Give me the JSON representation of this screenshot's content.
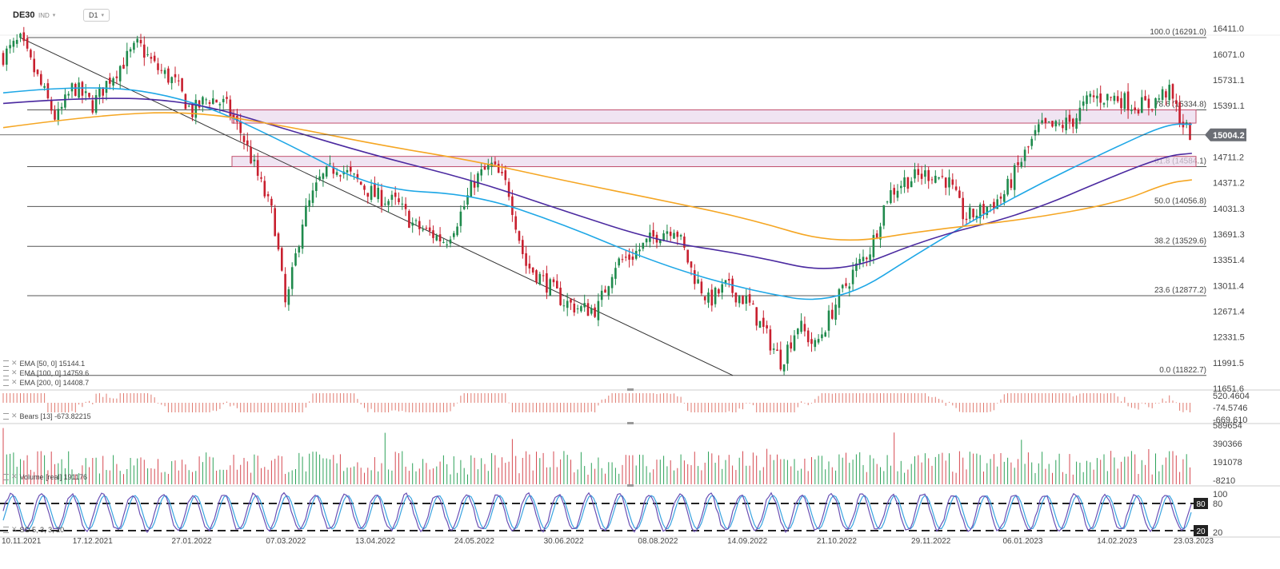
{
  "header": {
    "symbol": "DE30",
    "symbol_type": "IND",
    "timeframe": "D1",
    "caret": "▾"
  },
  "colors": {
    "bull": "#1f8a4c",
    "bear": "#c8202f",
    "ema50": "#1ea7e6",
    "ema100": "#4b2aa0",
    "ema200": "#f5a623",
    "zone_fill": "#e9d8ec",
    "zone_stroke": "#c2506e",
    "price_tag": "#6b6e75",
    "stoch_k": "#6a4fb3",
    "stoch_d": "#39a4e0"
  },
  "chart_data": [
    {
      "type": "candlestick",
      "timeframe": "D1",
      "ylim": [
        11651.6,
        16471
      ],
      "y_ticks": [
        "16411.0",
        "16071.0",
        "15731.1",
        "15391.1",
        "14711.2",
        "14371.2",
        "14031.3",
        "13691.3",
        "13351.4",
        "13011.4",
        "12671.4",
        "12331.5",
        "11991.5",
        "11651.6"
      ],
      "x_ticks": [
        "10.11.2021",
        "17.12.2021",
        "27.01.2022",
        "07.03.2022",
        "13.04.2022",
        "24.05.2022",
        "30.06.2022",
        "08.08.2022",
        "14.09.2022",
        "21.10.2022",
        "29.11.2022",
        "06.01.2023",
        "14.02.2023",
        "23.03.2023"
      ],
      "last_price": "15004.2",
      "close_path": [
        [
          "10.11.2021",
          16050
        ],
        [
          "17.11.2021",
          16250
        ],
        [
          "25.11.2021",
          15700
        ],
        [
          "02.12.2021",
          15200
        ],
        [
          "09.12.2021",
          15650
        ],
        [
          "17.12.2021",
          15400
        ],
        [
          "24.12.2021",
          15750
        ],
        [
          "05.01.2022",
          16200
        ],
        [
          "12.01.2022",
          15900
        ],
        [
          "20.01.2022",
          15700
        ],
        [
          "27.01.2022",
          15300
        ],
        [
          "03.02.2022",
          15500
        ],
        [
          "10.02.2022",
          15400
        ],
        [
          "17.02.2022",
          15000
        ],
        [
          "24.02.2022",
          14400
        ],
        [
          "02.03.2022",
          13900
        ],
        [
          "07.03.2022",
          12700
        ],
        [
          "14.03.2022",
          13900
        ],
        [
          "21.03.2022",
          14400
        ],
        [
          "28.03.2022",
          14600
        ],
        [
          "05.04.2022",
          14400
        ],
        [
          "13.04.2022",
          14200
        ],
        [
          "22.04.2022",
          14100
        ],
        [
          "29.04.2022",
          13800
        ],
        [
          "06.05.2022",
          13700
        ],
        [
          "12.05.2022",
          13600
        ],
        [
          "19.05.2022",
          14000
        ],
        [
          "24.05.2022",
          14400
        ],
        [
          "31.05.2022",
          14600
        ],
        [
          "07.06.2022",
          14300
        ],
        [
          "14.06.2022",
          13300
        ],
        [
          "21.06.2022",
          13100
        ],
        [
          "30.06.2022",
          12800
        ],
        [
          "07.07.2022",
          12700
        ],
        [
          "14.07.2022",
          12700
        ],
        [
          "21.07.2022",
          13300
        ],
        [
          "28.07.2022",
          13400
        ],
        [
          "08.08.2022",
          13700
        ],
        [
          "15.08.2022",
          13800
        ],
        [
          "22.08.2022",
          13200
        ],
        [
          "29.08.2022",
          12800
        ],
        [
          "05.09.2022",
          13000
        ],
        [
          "14.09.2022",
          12800
        ],
        [
          "21.09.2022",
          12400
        ],
        [
          "28.09.2022",
          12000
        ],
        [
          "05.10.2022",
          12500
        ],
        [
          "12.10.2022",
          12200
        ],
        [
          "21.10.2022",
          12800
        ],
        [
          "28.10.2022",
          13200
        ],
        [
          "04.11.2022",
          13500
        ],
        [
          "11.11.2022",
          14200
        ],
        [
          "18.11.2022",
          14400
        ],
        [
          "29.11.2022",
          14500
        ],
        [
          "06.12.2022",
          14400
        ],
        [
          "13.12.2022",
          13900
        ],
        [
          "20.12.2022",
          14000
        ],
        [
          "29.12.2022",
          14200
        ],
        [
          "06.01.2023",
          14700
        ],
        [
          "13.01.2023",
          15100
        ],
        [
          "20.01.2023",
          15100
        ],
        [
          "27.01.2023",
          15200
        ],
        [
          "03.02.2023",
          15500
        ],
        [
          "14.02.2023",
          15500
        ],
        [
          "21.02.2023",
          15400
        ],
        [
          "28.02.2023",
          15400
        ],
        [
          "07.03.2023",
          15600
        ],
        [
          "14.03.2023",
          15100
        ],
        [
          "17.03.2023",
          15004
        ]
      ],
      "series": [
        {
          "name": "EMA [50, 0]",
          "value": "15144.1",
          "points": [
            [
              "10.11.2021",
              15560
            ],
            [
              "17.12.2021",
              15680
            ],
            [
              "27.01.2022",
              15480
            ],
            [
              "07.03.2022",
              14900
            ],
            [
              "13.04.2022",
              14280
            ],
            [
              "24.05.2022",
              14220
            ],
            [
              "30.06.2022",
              13820
            ],
            [
              "08.08.2022",
              13300
            ],
            [
              "14.09.2022",
              12950
            ],
            [
              "21.10.2022",
              12750
            ],
            [
              "29.11.2022",
              13550
            ],
            [
              "06.01.2023",
              14250
            ],
            [
              "14.02.2023",
              14850
            ],
            [
              "07.03.2023",
              15150
            ],
            [
              "17.03.2023",
              15144
            ]
          ]
        },
        {
          "name": "EMA [100, 0]",
          "value": "14759.6",
          "points": [
            [
              "10.11.2021",
              15420
            ],
            [
              "17.12.2021",
              15510
            ],
            [
              "27.01.2022",
              15450
            ],
            [
              "07.03.2022",
              15080
            ],
            [
              "13.04.2022",
              14730
            ],
            [
              "24.05.2022",
              14400
            ],
            [
              "30.06.2022",
              14000
            ],
            [
              "08.08.2022",
              13600
            ],
            [
              "14.09.2022",
              13420
            ],
            [
              "21.10.2022",
              13150
            ],
            [
              "29.11.2022",
              13650
            ],
            [
              "06.01.2023",
              13950
            ],
            [
              "14.02.2023",
              14480
            ],
            [
              "07.03.2023",
              14730
            ],
            [
              "17.03.2023",
              14760
            ]
          ]
        },
        {
          "name": "EMA [200, 0]",
          "value": "14408.7",
          "points": [
            [
              "10.11.2021",
              15100
            ],
            [
              "17.12.2021",
              15260
            ],
            [
              "27.01.2022",
              15320
            ],
            [
              "07.03.2022",
              15120
            ],
            [
              "13.04.2022",
              14880
            ],
            [
              "24.05.2022",
              14660
            ],
            [
              "30.06.2022",
              14400
            ],
            [
              "08.08.2022",
              14150
            ],
            [
              "14.09.2022",
              13900
            ],
            [
              "21.10.2022",
              13550
            ],
            [
              "29.11.2022",
              13750
            ],
            [
              "06.01.2023",
              13880
            ],
            [
              "14.02.2023",
              14100
            ],
            [
              "07.03.2023",
              14370
            ],
            [
              "17.03.2023",
              14409
            ]
          ]
        }
      ],
      "fib_levels": [
        {
          "label": "100.0 (16291.0)",
          "value": 16291.0
        },
        {
          "label": "78.6 (15334.8)",
          "value": 15334.8
        },
        {
          "label": "61.8 (14584.1)",
          "value": 14584.1
        },
        {
          "label": "50.0 (14056.8)",
          "value": 14056.8
        },
        {
          "label": "38.2 (13529.6)",
          "value": 13529.6
        },
        {
          "label": "23.6 (12877.2)",
          "value": 12877.2
        },
        {
          "label": "0.0 (11822.7)",
          "value": 11822.7
        }
      ],
      "zones": [
        [
          15160,
          15334.8
        ],
        [
          14584.1,
          14720
        ]
      ],
      "trendline": [
        [
          "17.11.2021",
          16291.0
        ],
        [
          "08.09.2022",
          11822.7
        ]
      ]
    },
    {
      "type": "bar",
      "name": "Bears [13]",
      "value": "-673.82215",
      "y_ticks": [
        "520.4604",
        "-74.5746",
        "-669.610"
      ]
    },
    {
      "type": "bar",
      "name": "Volume [real]",
      "value": "191176",
      "y_ticks": [
        "589654",
        "390366",
        "191078",
        "-8210"
      ]
    },
    {
      "type": "line",
      "name": "Stochastic",
      "label": "SO 5, 3, 3, 20",
      "y_ticks": [
        "100",
        "80",
        "20"
      ],
      "levels": [
        "80",
        "20"
      ]
    }
  ]
}
